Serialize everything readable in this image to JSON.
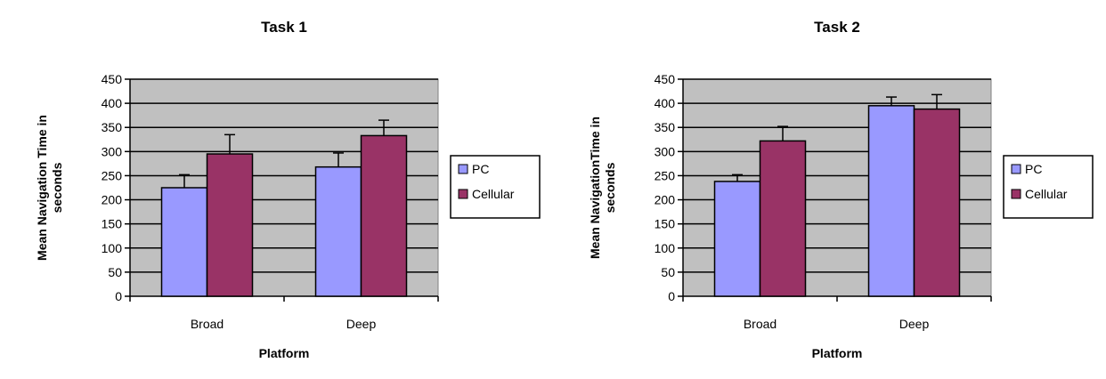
{
  "colors": {
    "pc": "#9999ff",
    "cellular": "#993366",
    "plot_bg": "#c0c0c0",
    "grid": "#000000"
  },
  "chart_data": [
    {
      "type": "bar",
      "title": "Task 1",
      "xlabel": "Platform",
      "ylabel_lines": [
        "Mean Navigation Time in",
        "seconds"
      ],
      "categories": [
        "Broad",
        "Deep"
      ],
      "series": [
        {
          "name": "PC",
          "values": [
            225,
            268
          ],
          "errors": [
            27,
            29
          ]
        },
        {
          "name": "Cellular",
          "values": [
            295,
            333
          ],
          "errors": [
            40,
            32
          ]
        }
      ],
      "ylim": [
        0,
        450
      ],
      "yticks": [
        0,
        50,
        100,
        150,
        200,
        250,
        300,
        350,
        400,
        450
      ],
      "grid": true,
      "legend": "right"
    },
    {
      "type": "bar",
      "title": "Task 2",
      "xlabel": "Platform",
      "ylabel_lines": [
        "Mean NavigationTime in",
        "seconds"
      ],
      "categories": [
        "Broad",
        "Deep"
      ],
      "series": [
        {
          "name": "PC",
          "values": [
            238,
            395
          ],
          "errors": [
            14,
            18
          ]
        },
        {
          "name": "Cellular",
          "values": [
            322,
            388
          ],
          "errors": [
            30,
            30
          ]
        }
      ],
      "ylim": [
        0,
        450
      ],
      "yticks": [
        0,
        50,
        100,
        150,
        200,
        250,
        300,
        350,
        400,
        450
      ],
      "grid": true,
      "legend": "right"
    }
  ]
}
